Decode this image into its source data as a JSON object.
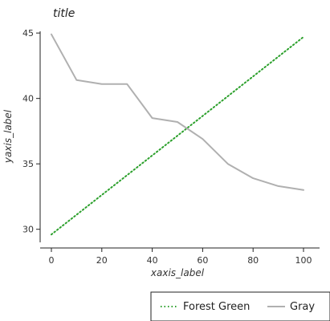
{
  "chart_data": {
    "type": "line",
    "title": "title",
    "xlabel": "xaxis_label",
    "ylabel": "yaxis_label",
    "xlim": [
      0,
      100
    ],
    "ylim": [
      29,
      45.5
    ],
    "x_ticks": [
      "0",
      "20",
      "40",
      "60",
      "80",
      "100"
    ],
    "y_ticks": [
      "30",
      "35",
      "40",
      "45"
    ],
    "grid": false,
    "legend_position": "bottom-right",
    "series": [
      {
        "name": "Forest Green",
        "color": "#2ca02c",
        "style": "dotted",
        "x": [
          0,
          100
        ],
        "y": [
          29.6,
          44.7
        ]
      },
      {
        "name": "Gray",
        "color": "#b0b0b0",
        "style": "solid",
        "x": [
          0,
          10,
          20,
          30,
          40,
          50,
          60,
          70,
          80,
          90,
          100
        ],
        "y": [
          44.9,
          41.4,
          41.1,
          41.1,
          38.5,
          38.2,
          36.9,
          35.0,
          33.9,
          33.3,
          33.0
        ]
      }
    ]
  }
}
